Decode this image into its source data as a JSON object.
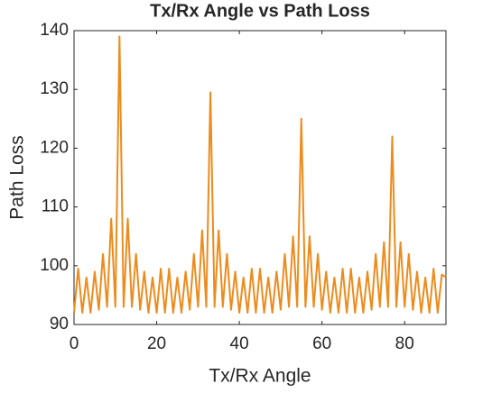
{
  "chart_data": {
    "type": "line",
    "title": "Tx/Rx Angle vs Path Loss",
    "xlabel": "Tx/Rx Angle",
    "ylabel": "Path Loss",
    "x": [
      0,
      1,
      2,
      3,
      4,
      5,
      6,
      7,
      8,
      9,
      10,
      11,
      12,
      13,
      14,
      15,
      16,
      17,
      18,
      19,
      20,
      21,
      22,
      23,
      24,
      25,
      26,
      27,
      28,
      29,
      30,
      31,
      32,
      33,
      34,
      35,
      36,
      37,
      38,
      39,
      40,
      41,
      42,
      43,
      44,
      45,
      46,
      47,
      48,
      49,
      50,
      51,
      52,
      53,
      54,
      55,
      56,
      57,
      58,
      59,
      60,
      61,
      62,
      63,
      64,
      65,
      66,
      67,
      68,
      69,
      70,
      71,
      72,
      73,
      74,
      75,
      76,
      77,
      78,
      79,
      80,
      81,
      82,
      83,
      84,
      85,
      86,
      87,
      88,
      89,
      90
    ],
    "series": [
      {
        "name": "Path Loss",
        "color": "#ed8b1c",
        "values": [
          92,
          99.5,
          92,
          98,
          92,
          99,
          92.5,
          102,
          93,
          108,
          93,
          139,
          93,
          108,
          93,
          102,
          92.5,
          99,
          92,
          98,
          92,
          99.5,
          92,
          99.5,
          92,
          98,
          92,
          99,
          92.5,
          102,
          93,
          106,
          93,
          129.5,
          93,
          106,
          93,
          102,
          92.5,
          99,
          92,
          98,
          92,
          99.5,
          92,
          99.5,
          92,
          98,
          92,
          99,
          92.5,
          102,
          93,
          105,
          93,
          125,
          93,
          105,
          93,
          102,
          92.5,
          99,
          92,
          98,
          92,
          99.5,
          92,
          99.5,
          92,
          98,
          92,
          99,
          92.5,
          102,
          93,
          104,
          93,
          122,
          93,
          104,
          93,
          102,
          92.5,
          99,
          92,
          98,
          92,
          99.5,
          92,
          98.5,
          98
        ]
      }
    ],
    "xlim": [
      0,
      90
    ],
    "xticks": [
      0,
      20,
      40,
      60,
      80
    ],
    "ylim": [
      90,
      140
    ],
    "yticks": [
      90,
      100,
      110,
      120,
      130,
      140
    ]
  }
}
